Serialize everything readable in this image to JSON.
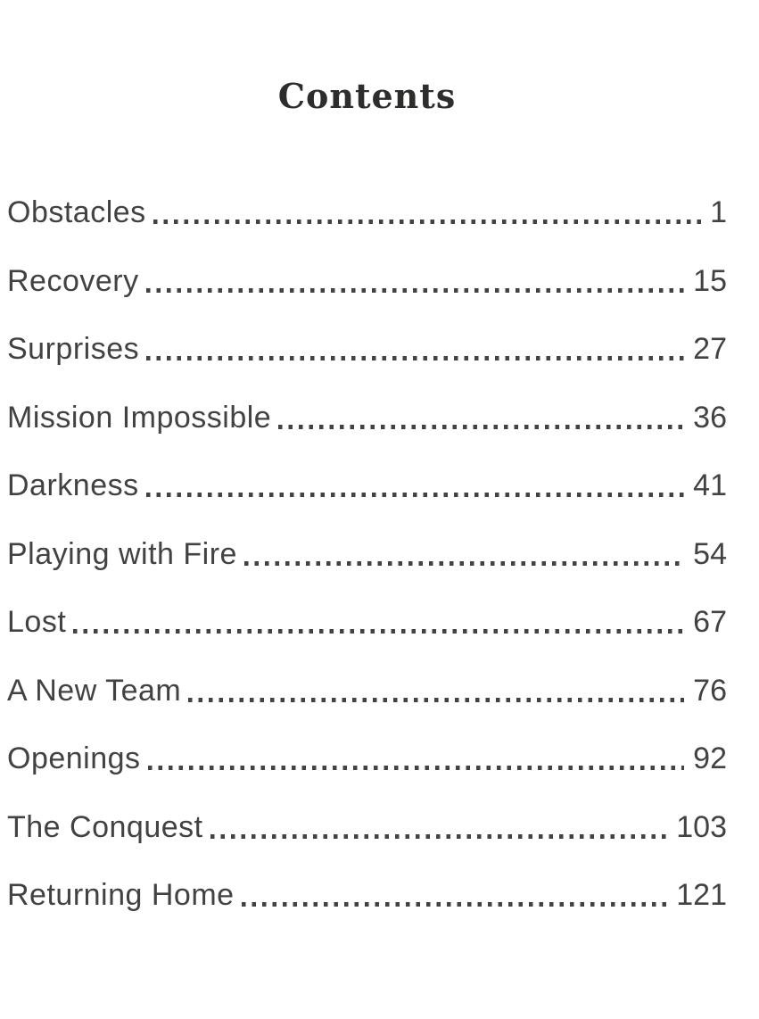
{
  "page": {
    "title": "Contents"
  },
  "colors": {
    "paper": "#ffffff",
    "ink": "#424242",
    "title-ink": "#2e2d2c"
  },
  "toc": {
    "leader_style": "dotted",
    "entries": [
      {
        "label": "Obstacles",
        "page": "1"
      },
      {
        "label": "Recovery",
        "page": "15"
      },
      {
        "label": "Surprises",
        "page": "27"
      },
      {
        "label": "Mission Impossible",
        "page": "36"
      },
      {
        "label": "Darkness",
        "page": "41"
      },
      {
        "label": "Playing with Fire",
        "page": "54"
      },
      {
        "label": "Lost",
        "page": "67"
      },
      {
        "label": "A New Team",
        "page": "76"
      },
      {
        "label": "Openings",
        "page": "92"
      },
      {
        "label": "The Conquest",
        "page": "103"
      },
      {
        "label": "Returning Home",
        "page": "121"
      }
    ]
  }
}
